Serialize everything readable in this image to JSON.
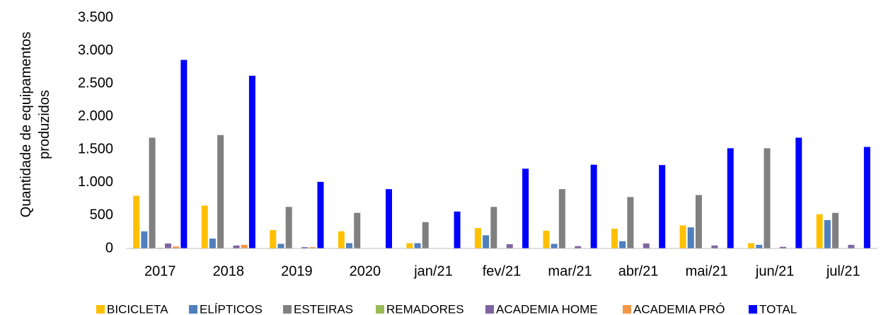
{
  "chart_data": {
    "type": "bar",
    "ylabel": "Quantidade de equipamentos produzidos",
    "categories": [
      "2017",
      "2018",
      "2019",
      "2020",
      "jan/21",
      "fev/21",
      "mar/21",
      "abr/21",
      "mai/21",
      "jun/21",
      "jul/21"
    ],
    "series": [
      {
        "name": "BICICLETA",
        "color": "#ffc000",
        "values": [
          800,
          650,
          280,
          260,
          80,
          310,
          270,
          300,
          350,
          80,
          520
        ]
      },
      {
        "name": "ELÍPTICOS",
        "color": "#4f7fbd",
        "values": [
          260,
          150,
          70,
          80,
          80,
          200,
          70,
          110,
          320,
          55,
          430
        ]
      },
      {
        "name": "ESTEIRAS",
        "color": "#808080",
        "values": [
          1680,
          1720,
          630,
          540,
          400,
          630,
          900,
          780,
          810,
          1520,
          540
        ]
      },
      {
        "name": "REMADORES",
        "color": "#9bbb59",
        "values": [
          10,
          5,
          5,
          5,
          0,
          0,
          0,
          0,
          0,
          0,
          0
        ]
      },
      {
        "name": "ACADEMIA HOME",
        "color": "#8064a2",
        "values": [
          75,
          45,
          20,
          5,
          0,
          65,
          35,
          75,
          45,
          25,
          55
        ]
      },
      {
        "name": "ACADEMIA PRÓ",
        "color": "#f79646",
        "values": [
          30,
          55,
          20,
          5,
          0,
          0,
          0,
          0,
          0,
          0,
          0
        ]
      },
      {
        "name": "TOTAL",
        "color": "#0000ff",
        "values": [
          2860,
          2620,
          1010,
          900,
          560,
          1210,
          1270,
          1265,
          1520,
          1680,
          1540
        ]
      }
    ],
    "ylim": [
      0,
      3500
    ],
    "yticks": [
      0,
      500,
      {
        "value": 1000,
        "label": "1.000"
      },
      {
        "value": 1500,
        "label": "1.500"
      },
      {
        "value": 2000,
        "label": "2.000"
      },
      {
        "value": 2500,
        "label": "2.500"
      },
      {
        "value": 3000,
        "label": "3.000"
      },
      {
        "value": 3500,
        "label": "3.500"
      }
    ],
    "grid": false,
    "legend": "bottom"
  }
}
